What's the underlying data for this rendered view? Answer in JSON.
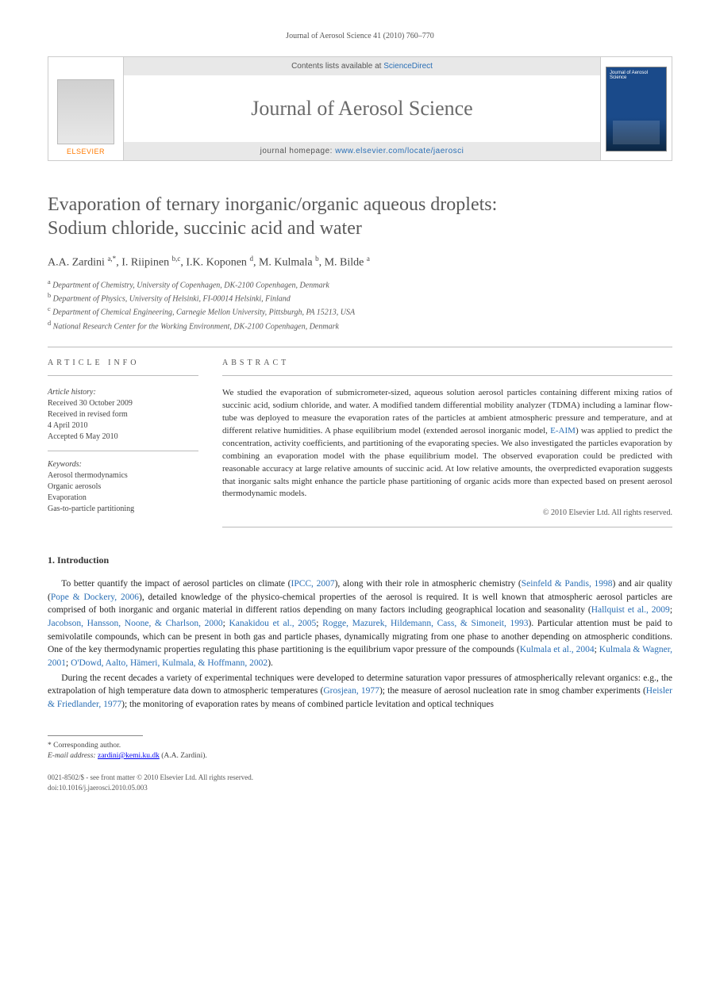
{
  "running_head": "Journal of Aerosol Science 41 (2010) 760–770",
  "banner": {
    "elsevier": "ELSEVIER",
    "contents_line_pre": "Contents lists available at ",
    "contents_link": "ScienceDirect",
    "journal_name": "Journal of Aerosol Science",
    "homepage_pre": "journal homepage: ",
    "homepage_url": "www.elsevier.com/locate/jaerosci",
    "cover_text": "Journal of Aerosol Science"
  },
  "title_line1": "Evaporation of ternary inorganic/organic aqueous droplets:",
  "title_line2": "Sodium chloride, succinic acid and water",
  "authors_html": "A.A. Zardini <sup>a,*</sup>, I. Riipinen <sup>b,c</sup>, I.K. Koponen <sup>d</sup>, M. Kulmala <sup>b</sup>, M. Bilde <sup>a</sup>",
  "affiliations": [
    {
      "sup": "a",
      "text": "Department of Chemistry, University of Copenhagen, DK-2100 Copenhagen, Denmark"
    },
    {
      "sup": "b",
      "text": "Department of Physics, University of Helsinki, FI-00014 Helsinki, Finland"
    },
    {
      "sup": "c",
      "text": "Department of Chemical Engineering, Carnegie Mellon University, Pittsburgh, PA 15213, USA"
    },
    {
      "sup": "d",
      "text": "National Research Center for the Working Environment, DK-2100 Copenhagen, Denmark"
    }
  ],
  "info": {
    "label": "ARTICLE INFO",
    "history_label": "Article history:",
    "history": [
      "Received 30 October 2009",
      "Received in revised form",
      "4 April 2010",
      "Accepted 6 May 2010"
    ],
    "keywords_label": "Keywords:",
    "keywords": [
      "Aerosol thermodynamics",
      "Organic aerosols",
      "Evaporation",
      "Gas-to-particle partitioning"
    ]
  },
  "abstract": {
    "label": "ABSTRACT",
    "text_pre": "We studied the evaporation of submicrometer-sized, aqueous solution aerosol particles containing different mixing ratios of succinic acid, sodium chloride, and water. A modified tandem differential mobility analyzer (TDMA) including a laminar flow-tube was deployed to measure the evaporation rates of the particles at ambient atmospheric pressure and temperature, and at different relative humidities. A phase equilibrium model (extended aerosol inorganic model, ",
    "eaim_link": "E-AIM",
    "text_post": ") was applied to predict the concentration, activity coefficients, and partitioning of the evaporating species. We also investigated the particles evaporation by combining an evaporation model with the phase equilibrium model. The observed evaporation could be predicted with reasonable accuracy at large relative amounts of succinic acid. At low relative amounts, the overpredicted evaporation suggests that inorganic salts might enhance the particle phase partitioning of organic acids more than expected based on present aerosol thermodynamic models.",
    "copyright": "© 2010 Elsevier Ltd. All rights reserved."
  },
  "section1": {
    "heading": "1. Introduction",
    "para1_a": "To better quantify the impact of aerosol particles on climate (",
    "ipcc": "IPCC, 2007",
    "para1_b": "), along with their role in atmospheric chemistry (",
    "seinfeld": "Seinfeld & Pandis, 1998",
    "para1_c": ") and air quality (",
    "pope": "Pope & Dockery, 2006",
    "para1_d": "), detailed knowledge of the physico-chemical properties of the aerosol is required. It is well known that atmospheric aerosol particles are comprised of both inorganic and organic material in different ratios depending on many factors including geographical location and seasonality (",
    "hallquist": "Hallquist et al., 2009",
    "sep1": "; ",
    "jacobson": "Jacobson, Hansson, Noone, & Charlson, 2000",
    "sep2": "; ",
    "kanakidou": "Kanakidou et al., 2005",
    "sep3": "; ",
    "rogge": "Rogge, Mazurek, Hildemann, Cass, & Simoneit, 1993",
    "para1_e": "). Particular attention must be paid to semivolatile compounds, which can be present in both gas and particle phases, dynamically migrating from one phase to another depending on atmospheric conditions. One of the key thermodynamic properties regulating this phase partitioning is the equilibrium vapor pressure of the compounds (",
    "kulmala04": "Kulmala et al., 2004",
    "sep4": "; ",
    "kulmalawagner": "Kulmala & Wagner, 2001",
    "sep5": "; ",
    "odowd": "O'Dowd, Aalto, Hämeri, Kulmala, & Hoffmann, 2002",
    "para1_f": ").",
    "para2_a": "During the recent decades a variety of experimental techniques were developed to determine saturation vapor pressures of atmospherically relevant organics: e.g., the extrapolation of high temperature data down to atmospheric temperatures (",
    "grosjean": "Grosjean, 1977",
    "para2_b": "); the measure of aerosol nucleation rate in smog chamber experiments (",
    "heisler": "Heisler & Friedlander, 1977",
    "para2_c": "); the monitoring of evaporation rates by means of combined particle levitation and optical techniques"
  },
  "footnotes": {
    "corr_marker": "* ",
    "corr_text": "Corresponding author.",
    "email_label": "E-mail address: ",
    "email": "zardini@kemi.ku.dk",
    "email_name": " (A.A. Zardini)."
  },
  "pagefoot": {
    "line1": "0021-8502/$ - see front matter © 2010 Elsevier Ltd. All rights reserved.",
    "line2": "doi:10.1016/j.jaerosci.2010.05.003"
  },
  "colors": {
    "link": "#2a6fb5",
    "elsevier_orange": "#ff7a00",
    "rule": "#bbbbbb",
    "heading_gray": "#5a5a5a"
  }
}
